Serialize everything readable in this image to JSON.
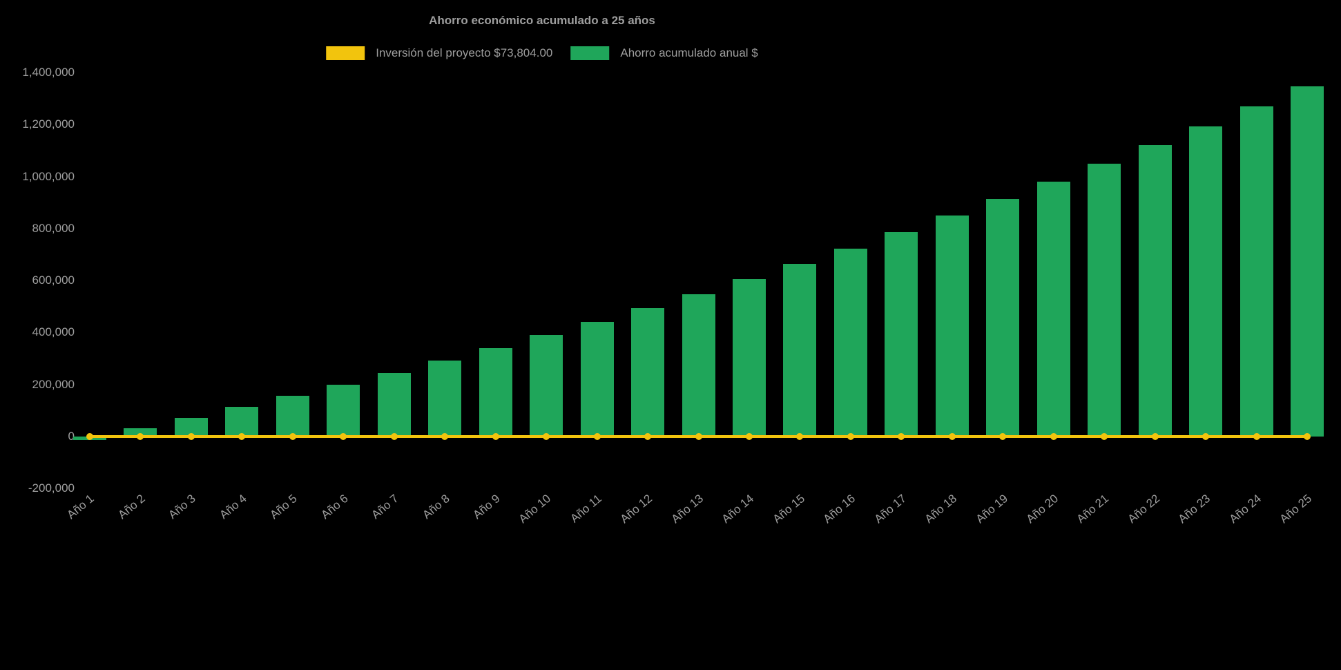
{
  "page": {
    "background": "#000000"
  },
  "chart_data": {
    "type": "bar",
    "title": "Ahorro económico acumulado a 25 años",
    "legend_position": "top",
    "grid": false,
    "text_color": "#9e9e9e",
    "ylim": [
      -200000,
      1400000
    ],
    "ytick_values": [
      1400000,
      1200000,
      1000000,
      800000,
      600000,
      400000,
      200000,
      0,
      -200000
    ],
    "ytick_labels": [
      "1,400,000",
      "1,200,000",
      "1,000,000",
      "800,000",
      "600,000",
      "400,000",
      "200,000",
      "0",
      "-200,000"
    ],
    "categories": [
      "Año 1",
      "Año 2",
      "Año 3",
      "Año 4",
      "Año 5",
      "Año 6",
      "Año 7",
      "Año 8",
      "Año 9",
      "Año 10",
      "Año 11",
      "Año 12",
      "Año 13",
      "Año 14",
      "Año 15",
      "Año 16",
      "Año 17",
      "Año 18",
      "Año 19",
      "Año 20",
      "Año 21",
      "Año 22",
      "Año 23",
      "Año 24",
      "Año 25"
    ],
    "series": [
      {
        "name": "Inversión del proyecto $73,804.00",
        "type": "line",
        "color": "#f2c40d",
        "point_style": "circle",
        "investment_amount": 73804,
        "constant_value": 0
      },
      {
        "name": "Ahorro acumulado anual $",
        "type": "bar",
        "color": "#1fa65a",
        "values": [
          -15000,
          30000,
          71000,
          114000,
          155000,
          200000,
          245000,
          293000,
          340000,
          391000,
          440000,
          493000,
          548000,
          605000,
          663000,
          722000,
          786000,
          849000,
          914000,
          980000,
          1048000,
          1120000,
          1192000,
          1270000,
          1348000
        ]
      }
    ]
  }
}
